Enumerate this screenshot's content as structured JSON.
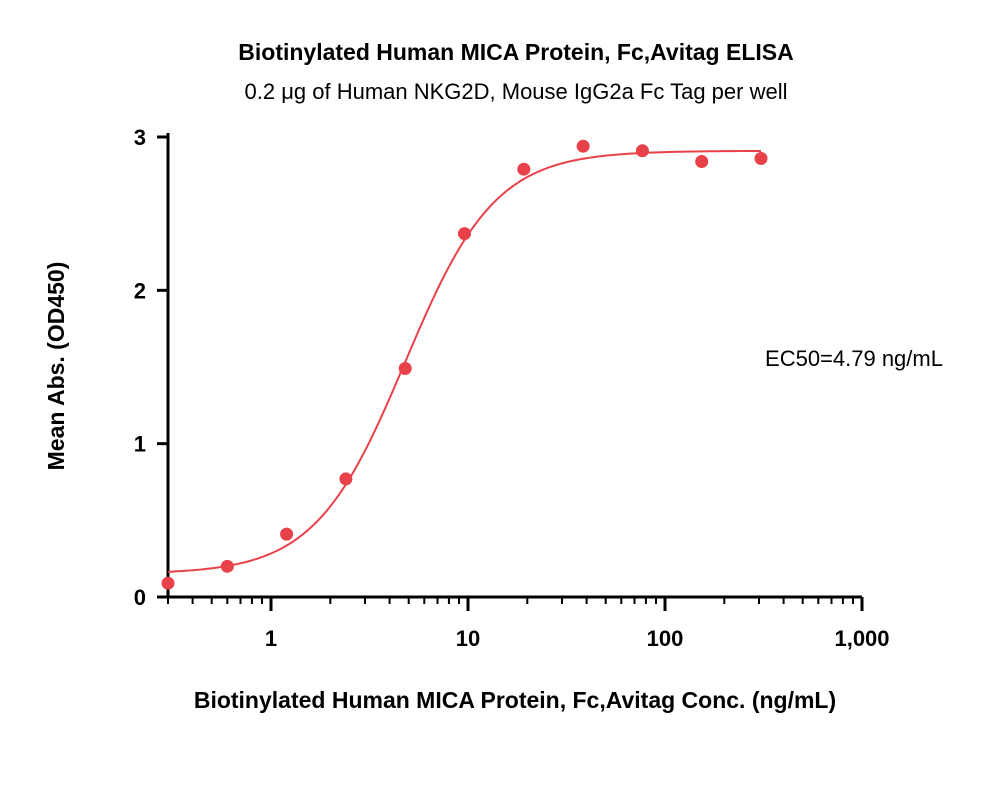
{
  "chart_data": {
    "type": "scatter",
    "title": "Biotinylated Human MICA Protein, Fc,Avitag ELISA",
    "subtitle": "0.2 μg of Human NKG2D, Mouse IgG2a Fc Tag per well",
    "xlabel": "Biotinylated Human MICA Protein, Fc,Avitag Conc. (ng/mL)",
    "ylabel": "Mean Abs. (OD450)",
    "x_scale": "log",
    "xlim": [
      0.3,
      1000
    ],
    "ylim": [
      0,
      3
    ],
    "x_ticks": [
      1,
      10,
      100,
      1000
    ],
    "x_tick_labels": [
      "1",
      "10",
      "100",
      "1,000"
    ],
    "y_ticks": [
      0,
      1,
      2,
      3
    ],
    "y_tick_labels": [
      "0",
      "1",
      "2",
      "3"
    ],
    "grid": false,
    "color": "#e8414a",
    "series": [
      {
        "x": [
          0.3,
          0.6,
          1.2,
          2.4,
          4.8,
          9.6,
          19.2,
          38.4,
          76.8,
          153.6,
          307.2
        ],
        "y": [
          0.09,
          0.2,
          0.41,
          0.77,
          1.49,
          2.37,
          2.79,
          2.94,
          2.91,
          2.84,
          2.86
        ]
      }
    ],
    "fit": {
      "type": "4PL",
      "bottom": 0.15,
      "top": 2.91,
      "ec50": 4.79,
      "hill": 1.9
    },
    "annotation": "EC50=4.79 ng/mL"
  }
}
